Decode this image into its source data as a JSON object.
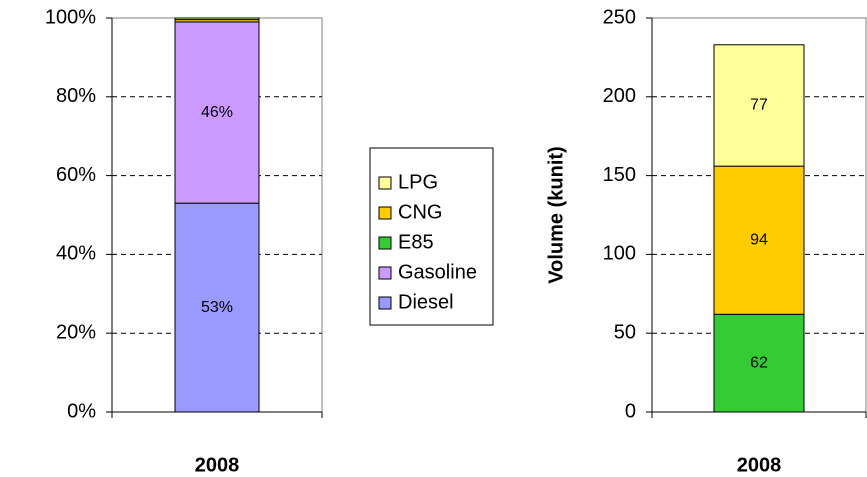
{
  "chart_data": [
    {
      "type": "bar",
      "stacked": true,
      "categories": [
        "2008"
      ],
      "series": [
        {
          "name": "Diesel",
          "color": "#9999ff",
          "values": [
            53
          ],
          "value_labels": [
            "53%"
          ]
        },
        {
          "name": "Gasoline",
          "color": "#cc99ff",
          "values": [
            46
          ],
          "value_labels": [
            "46%"
          ]
        },
        {
          "name": "E85",
          "color": "#33cc33",
          "values": [
            0
          ]
        },
        {
          "name": "CNG",
          "color": "#ffcc00",
          "values": [
            0.6
          ]
        },
        {
          "name": "LPG",
          "color": "#ffff99",
          "values": [
            0.4
          ]
        }
      ],
      "ylim": [
        0,
        100
      ],
      "yticks": [
        {
          "value": 0,
          "label": "0%"
        },
        {
          "value": 20,
          "label": "20%"
        },
        {
          "value": 40,
          "label": "40%"
        },
        {
          "value": 60,
          "label": "60%"
        },
        {
          "value": 80,
          "label": "80%"
        },
        {
          "value": 100,
          "label": "100%"
        }
      ],
      "grid": true,
      "legend": "right"
    },
    {
      "type": "bar",
      "stacked": true,
      "categories": [
        "2008"
      ],
      "ylabel": "Volume (kunit)",
      "series": [
        {
          "name": "E85",
          "color": "#33cc33",
          "values": [
            62
          ]
        },
        {
          "name": "CNG",
          "color": "#ffcc00",
          "values": [
            94
          ]
        },
        {
          "name": "LPG",
          "color": "#ffff99",
          "values": [
            77
          ]
        }
      ],
      "ylim": [
        0,
        250
      ],
      "yticks": [
        0,
        50,
        100,
        150,
        200,
        250
      ],
      "grid": true
    }
  ]
}
